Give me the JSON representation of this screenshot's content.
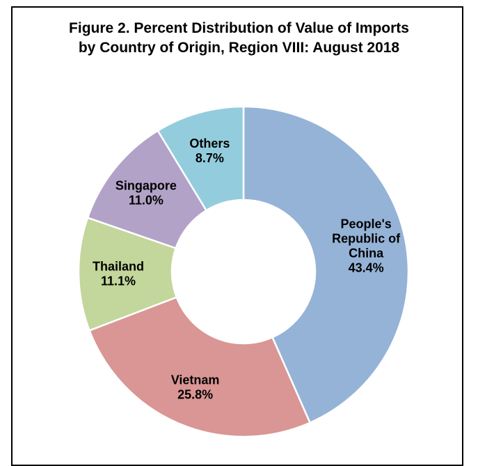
{
  "chart_data": {
    "type": "pie",
    "variant": "donut",
    "title_lines": [
      "Figure 2. Percent Distribution of Value of Imports",
      "by Country of Origin, Region VIII: August 2018"
    ],
    "unit": "%",
    "slices": [
      {
        "label_lines": [
          "People's",
          "Republic of",
          "China"
        ],
        "value": 43.4,
        "value_text": "43.4%",
        "color": "#95b3d7"
      },
      {
        "label_lines": [
          "Vietnam"
        ],
        "value": 25.8,
        "value_text": "25.8%",
        "color": "#d99694"
      },
      {
        "label_lines": [
          "Thailand"
        ],
        "value": 11.1,
        "value_text": "11.1%",
        "color": "#c3d69b"
      },
      {
        "label_lines": [
          "Singapore"
        ],
        "value": 11.0,
        "value_text": "11.0%",
        "color": "#b3a2c7"
      },
      {
        "label_lines": [
          "Others"
        ],
        "value": 8.7,
        "value_text": "8.7%",
        "color": "#93cddd"
      }
    ],
    "start_angle": "12 o'clock",
    "direction": "clockwise",
    "legend": "none"
  }
}
